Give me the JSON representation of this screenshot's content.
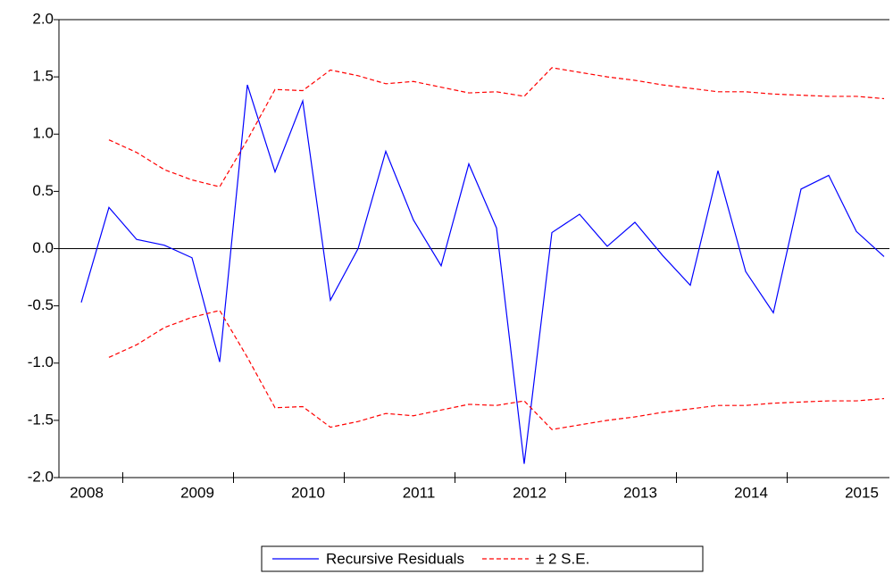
{
  "chart_data": {
    "type": "line",
    "categories": [
      "2008",
      null,
      null,
      null,
      "2009",
      null,
      null,
      null,
      "2010",
      null,
      null,
      null,
      "2011",
      null,
      null,
      null,
      "2012",
      null,
      null,
      null,
      "2013",
      null,
      null,
      null,
      "2014",
      null,
      null,
      null,
      "2015",
      null
    ],
    "series": [
      {
        "name": "Recursive Residuals",
        "color": "#0000ff",
        "dashed": false,
        "values": [
          -0.47,
          0.36,
          0.08,
          0.03,
          -0.08,
          -0.99,
          1.43,
          0.67,
          1.29,
          -0.45,
          0.0,
          0.85,
          0.25,
          -0.15,
          0.74,
          0.18,
          -1.88,
          0.14,
          0.3,
          0.02,
          0.23,
          -0.06,
          -0.32,
          0.68,
          -0.2,
          -0.56,
          0.52,
          0.64,
          0.15,
          -0.07
        ]
      },
      {
        "name": "± 2 S.E.",
        "color": "#ff0000",
        "dashed": true,
        "values": [
          null,
          0.95,
          0.84,
          0.69,
          0.6,
          0.54,
          0.95,
          1.39,
          1.38,
          1.56,
          1.51,
          1.44,
          1.46,
          1.41,
          1.36,
          1.37,
          1.33,
          1.58,
          1.54,
          1.5,
          1.47,
          1.43,
          1.4,
          1.37,
          1.37,
          1.35,
          1.34,
          1.33,
          1.33,
          1.31
        ],
        "lower": [
          null,
          -0.95,
          -0.84,
          -0.69,
          -0.6,
          -0.54,
          -0.95,
          -1.39,
          -1.38,
          -1.56,
          -1.51,
          -1.44,
          -1.46,
          -1.41,
          -1.36,
          -1.37,
          -1.33,
          -1.58,
          -1.54,
          -1.5,
          -1.47,
          -1.43,
          -1.4,
          -1.37,
          -1.37,
          -1.35,
          -1.34,
          -1.33,
          -1.33,
          -1.31
        ]
      }
    ],
    "ylim": [
      -2,
      2
    ],
    "yticks": [
      {
        "value": -2,
        "label": "-2.0"
      },
      -1.5,
      {
        "value": -1,
        "label": "-1.0"
      },
      -0.5,
      {
        "value": 0,
        "label": "0.0"
      },
      0.5,
      {
        "value": 1,
        "label": "1.0"
      },
      1.5,
      {
        "value": 2,
        "label": "2.0"
      }
    ],
    "zero_line": true,
    "grid": false,
    "legend": "bottom"
  }
}
